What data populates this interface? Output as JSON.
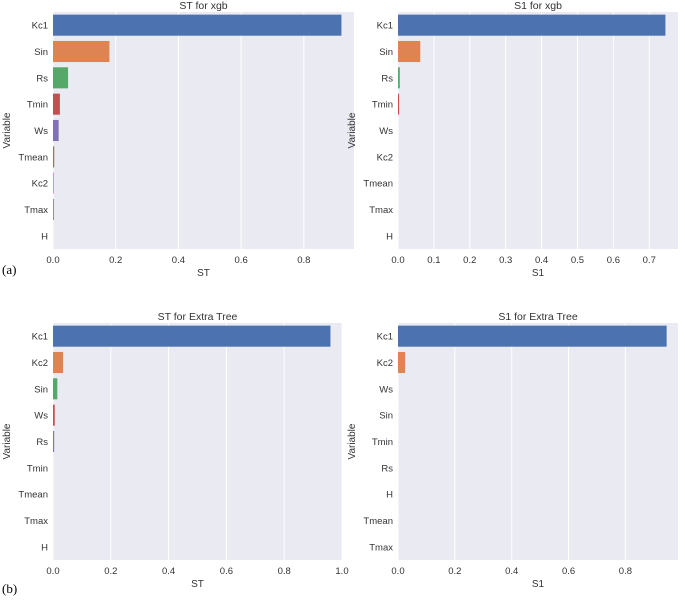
{
  "figure": {
    "panel_labels": [
      "(a)",
      "(b)"
    ],
    "ylabel": "Variable"
  },
  "colors": {
    "axes_bg": "#eaeaf2",
    "grid": "#ffffff",
    "text": "#333333",
    "palette": [
      "#4c72b0",
      "#dd8452",
      "#55a868",
      "#c44e52",
      "#8172b3",
      "#937860",
      "#da8bc3",
      "#8c8c8c",
      "#ccb974",
      "#64b5cd"
    ]
  },
  "chart_data": [
    {
      "type": "bar",
      "orientation": "horizontal",
      "title": "ST for xgb",
      "xlabel": "ST",
      "ylabel": "Variable",
      "categories": [
        "Kc1",
        "Sin",
        "Rs",
        "Tmin",
        "Ws",
        "Tmean",
        "Kc2",
        "Tmax",
        "H"
      ],
      "values": [
        0.92,
        0.18,
        0.048,
        0.022,
        0.018,
        0.004,
        0.003,
        0.003,
        0.0
      ],
      "xlim": [
        0,
        0.96
      ],
      "xticks": [
        0.0,
        0.2,
        0.4,
        0.6,
        0.8
      ],
      "xtick_labels": [
        "0.0",
        "0.2",
        "0.4",
        "0.6",
        "0.8"
      ]
    },
    {
      "type": "bar",
      "orientation": "horizontal",
      "title": "S1 for xgb",
      "xlabel": "S1",
      "ylabel": "Variable",
      "categories": [
        "Kc1",
        "Sin",
        "Rs",
        "Tmin",
        "Ws",
        "Kc2",
        "Tmean",
        "Tmax",
        "H"
      ],
      "values": [
        0.745,
        0.062,
        0.005,
        0.003,
        0.0,
        0.0,
        0.0,
        0.0,
        0.0
      ],
      "xlim": [
        0,
        0.78
      ],
      "xticks": [
        0.0,
        0.1,
        0.2,
        0.3,
        0.4,
        0.5,
        0.6,
        0.7
      ],
      "xtick_labels": [
        "0.0",
        "0.1",
        "0.2",
        "0.3",
        "0.4",
        "0.5",
        "0.6",
        "0.7"
      ]
    },
    {
      "type": "bar",
      "orientation": "horizontal",
      "title": "ST for Extra Tree",
      "xlabel": "ST",
      "ylabel": "Variable",
      "categories": [
        "Kc1",
        "Kc2",
        "Sin",
        "Ws",
        "Rs",
        "Tmin",
        "Tmean",
        "Tmax",
        "H"
      ],
      "values": [
        0.96,
        0.035,
        0.015,
        0.006,
        0.004,
        0.0,
        0.0,
        0.0,
        0.0
      ],
      "xlim": [
        0,
        1.0
      ],
      "xticks": [
        0.0,
        0.2,
        0.4,
        0.6,
        0.8,
        1.0
      ],
      "xtick_labels": [
        "0.0",
        "0.2",
        "0.4",
        "0.6",
        "0.8",
        "1.0"
      ]
    },
    {
      "type": "bar",
      "orientation": "horizontal",
      "title": "S1 for Extra Tree",
      "xlabel": "S1",
      "ylabel": "Variable",
      "categories": [
        "Kc1",
        "Kc2",
        "Ws",
        "Sin",
        "Tmin",
        "Rs",
        "H",
        "Tmean",
        "Tmax"
      ],
      "values": [
        0.945,
        0.025,
        0.0,
        0.0,
        0.0,
        0.0,
        0.0,
        0.0,
        0.0
      ],
      "xlim": [
        0,
        0.985
      ],
      "xticks": [
        0.0,
        0.2,
        0.4,
        0.6,
        0.8
      ],
      "xtick_labels": [
        "0.0",
        "0.2",
        "0.4",
        "0.6",
        "0.8"
      ]
    }
  ]
}
